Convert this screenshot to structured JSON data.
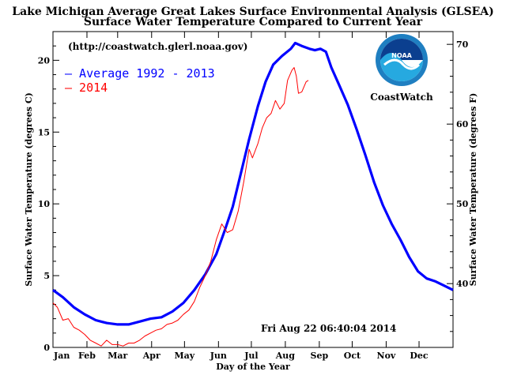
{
  "chart_data": {
    "type": "line",
    "title": "Lake Michigan Average Great Lakes Surface Environmental Analysis (GLSEA)",
    "subtitle": "Surface Water Temperature Compared to Current Year",
    "xlabel": "Day of the Year",
    "ylabel": "Surface Water Temperature (degrees C)",
    "ylabel_right": "Surface Water Temperature (degrees F)",
    "xlim": [
      1,
      366
    ],
    "ylim": [
      0,
      22
    ],
    "ylim_right_f": [
      32,
      71.6
    ],
    "month_labels": [
      "Jan",
      "Feb",
      "Mar",
      "Apr",
      "May",
      "Jun",
      "Jul",
      "Aug",
      "Sep",
      "Oct",
      "Nov",
      "Dec"
    ],
    "month_start_days": [
      1,
      32,
      60,
      91,
      121,
      152,
      182,
      213,
      244,
      274,
      305,
      335
    ],
    "yticks_c": [
      0,
      5,
      10,
      15,
      20
    ],
    "yticks_f": [
      40,
      50,
      60,
      70
    ],
    "url_text": "(http://coastwatch.glerl.noaa.gov)",
    "timestamp": "Fri Aug 22 06:40:04 2014",
    "logo_text": "CoastWatch",
    "logo_badge_text": "NOAA",
    "legend_position": "top-left",
    "series": [
      {
        "name": "Average 1992 - 2013",
        "color": "#0000ff",
        "points": [
          [
            1,
            4.0
          ],
          [
            10,
            3.5
          ],
          [
            20,
            2.8
          ],
          [
            30,
            2.3
          ],
          [
            40,
            1.9
          ],
          [
            50,
            1.7
          ],
          [
            60,
            1.6
          ],
          [
            70,
            1.6
          ],
          [
            80,
            1.8
          ],
          [
            90,
            2.0
          ],
          [
            100,
            2.1
          ],
          [
            110,
            2.5
          ],
          [
            120,
            3.1
          ],
          [
            130,
            4.0
          ],
          [
            140,
            5.1
          ],
          [
            150,
            6.5
          ],
          [
            158,
            8.2
          ],
          [
            165,
            9.8
          ],
          [
            172,
            12.0
          ],
          [
            180,
            14.5
          ],
          [
            188,
            16.8
          ],
          [
            195,
            18.5
          ],
          [
            202,
            19.7
          ],
          [
            210,
            20.3
          ],
          [
            218,
            20.8
          ],
          [
            222,
            21.2
          ],
          [
            228,
            21.0
          ],
          [
            235,
            20.8
          ],
          [
            240,
            20.7
          ],
          [
            245,
            20.8
          ],
          [
            250,
            20.6
          ],
          [
            255,
            19.5
          ],
          [
            262,
            18.3
          ],
          [
            270,
            16.9
          ],
          [
            278,
            15.2
          ],
          [
            286,
            13.4
          ],
          [
            294,
            11.5
          ],
          [
            302,
            9.9
          ],
          [
            310,
            8.6
          ],
          [
            318,
            7.5
          ],
          [
            326,
            6.3
          ],
          [
            334,
            5.3
          ],
          [
            342,
            4.8
          ],
          [
            350,
            4.6
          ],
          [
            358,
            4.3
          ],
          [
            366,
            4.0
          ]
        ]
      },
      {
        "name": "2014",
        "color": "#ff0000",
        "points": [
          [
            1,
            3.1
          ],
          [
            5,
            2.8
          ],
          [
            10,
            1.9
          ],
          [
            15,
            2.0
          ],
          [
            20,
            1.4
          ],
          [
            25,
            1.2
          ],
          [
            30,
            0.9
          ],
          [
            35,
            0.5
          ],
          [
            40,
            0.3
          ],
          [
            45,
            0.1
          ],
          [
            50,
            0.5
          ],
          [
            55,
            0.2
          ],
          [
            60,
            0.2
          ],
          [
            65,
            0.1
          ],
          [
            70,
            0.3
          ],
          [
            75,
            0.3
          ],
          [
            80,
            0.5
          ],
          [
            85,
            0.8
          ],
          [
            90,
            1.0
          ],
          [
            95,
            1.2
          ],
          [
            100,
            1.3
          ],
          [
            105,
            1.6
          ],
          [
            110,
            1.7
          ],
          [
            115,
            1.9
          ],
          [
            120,
            2.3
          ],
          [
            125,
            2.6
          ],
          [
            130,
            3.2
          ],
          [
            135,
            4.2
          ],
          [
            140,
            5.0
          ],
          [
            145,
            6.0
          ],
          [
            150,
            7.5
          ],
          [
            155,
            8.6
          ],
          [
            160,
            8.0
          ],
          [
            165,
            8.2
          ],
          [
            170,
            9.5
          ],
          [
            175,
            11.5
          ],
          [
            180,
            13.8
          ],
          [
            183,
            13.2
          ],
          [
            188,
            14.2
          ],
          [
            192,
            15.3
          ],
          [
            196,
            16.0
          ],
          [
            200,
            16.3
          ],
          [
            204,
            17.2
          ],
          [
            208,
            16.6
          ],
          [
            212,
            17.0
          ],
          [
            215,
            18.6
          ],
          [
            219,
            19.3
          ],
          [
            221,
            19.5
          ],
          [
            223,
            18.9
          ],
          [
            225,
            17.7
          ],
          [
            228,
            17.8
          ],
          [
            232,
            18.5
          ],
          [
            234,
            18.6
          ]
        ]
      }
    ]
  }
}
